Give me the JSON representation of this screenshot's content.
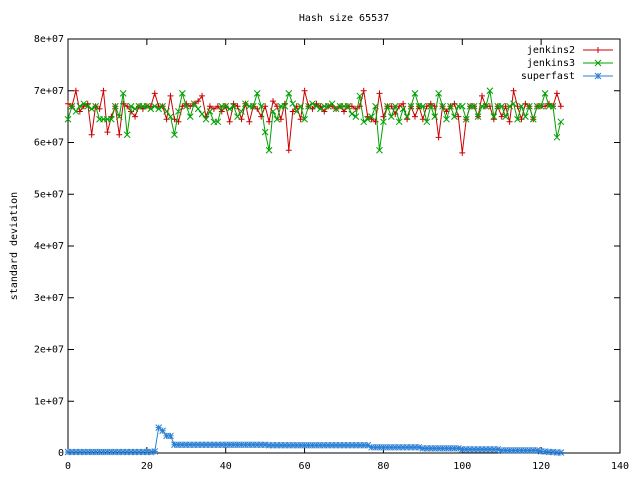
{
  "chart_data": {
    "type": "line",
    "title": "Hash size 65537",
    "ylabel": "standard deviation",
    "xlim": [
      0,
      140
    ],
    "xticks": [
      0,
      20,
      40,
      60,
      80,
      100,
      120,
      140
    ],
    "ylim": [
      0,
      80000000.0
    ],
    "yticks": [
      0,
      {
        "value": 10000000.0,
        "label": "1e+07"
      },
      {
        "value": 20000000.0,
        "label": "2e+07"
      },
      {
        "value": 30000000.0,
        "label": "3e+07"
      },
      {
        "value": 40000000.0,
        "label": "4e+07"
      },
      {
        "value": 50000000.0,
        "label": "5e+07"
      },
      {
        "value": 60000000.0,
        "label": "6e+07"
      },
      {
        "value": 70000000.0,
        "label": "7e+07"
      },
      {
        "value": 80000000.0,
        "label": "8e+07"
      }
    ],
    "legend": "top-right",
    "x": [
      0,
      1,
      2,
      3,
      4,
      5,
      6,
      7,
      8,
      9,
      10,
      11,
      12,
      13,
      14,
      15,
      16,
      17,
      18,
      19,
      20,
      21,
      22,
      23,
      24,
      25,
      26,
      27,
      28,
      29,
      30,
      31,
      32,
      33,
      34,
      35,
      36,
      37,
      38,
      39,
      40,
      41,
      42,
      43,
      44,
      45,
      46,
      47,
      48,
      49,
      50,
      51,
      52,
      53,
      54,
      55,
      56,
      57,
      58,
      59,
      60,
      61,
      62,
      63,
      64,
      65,
      66,
      67,
      68,
      69,
      70,
      71,
      72,
      73,
      74,
      75,
      76,
      77,
      78,
      79,
      80,
      81,
      82,
      83,
      84,
      85,
      86,
      87,
      88,
      89,
      90,
      91,
      92,
      93,
      94,
      95,
      96,
      97,
      98,
      99,
      100,
      101,
      102,
      103,
      104,
      105,
      106,
      107,
      108,
      109,
      110,
      111,
      112,
      113,
      114,
      115,
      116,
      117,
      118,
      119,
      120,
      121,
      122,
      123,
      124,
      125
    ],
    "series": [
      {
        "name": "jenkins2",
        "color": "#cc0000",
        "marker": "plus",
        "values": [
          67500000.0,
          67000000.0,
          70000000.0,
          66000000.0,
          67000000.0,
          67500000.0,
          61500000.0,
          67000000.0,
          66500000.0,
          70000000.0,
          62000000.0,
          65000000.0,
          67000000.0,
          61500000.0,
          67500000.0,
          67000000.0,
          66000000.0,
          65000000.0,
          67000000.0,
          66500000.0,
          67000000.0,
          67000000.0,
          69500000.0,
          67000000.0,
          67000000.0,
          64500000.0,
          69000000.0,
          64500000.0,
          64000000.0,
          67000000.0,
          67500000.0,
          67000000.0,
          67500000.0,
          68000000.0,
          69000000.0,
          65000000.0,
          67000000.0,
          66500000.0,
          67000000.0,
          66000000.0,
          67000000.0,
          64000000.0,
          67500000.0,
          67000000.0,
          64500000.0,
          67500000.0,
          64000000.0,
          67000000.0,
          66500000.0,
          65000000.0,
          67000000.0,
          64000000.0,
          68000000.0,
          67000000.0,
          64500000.0,
          67500000.0,
          58500000.0,
          66000000.0,
          67000000.0,
          64500000.0,
          70000000.0,
          67000000.0,
          66500000.0,
          67500000.0,
          67000000.0,
          66000000.0,
          67000000.0,
          67000000.0,
          66500000.0,
          67000000.0,
          66000000.0,
          67000000.0,
          67000000.0,
          66500000.0,
          67000000.0,
          70000000.0,
          65000000.0,
          64500000.0,
          64000000.0,
          69500000.0,
          65000000.0,
          67000000.0,
          67000000.0,
          65500000.0,
          67000000.0,
          67500000.0,
          64500000.0,
          67000000.0,
          65000000.0,
          67000000.0,
          64500000.0,
          67000000.0,
          67500000.0,
          67000000.0,
          61000000.0,
          67000000.0,
          66000000.0,
          67000000.0,
          67500000.0,
          65000000.0,
          58000000.0,
          64500000.0,
          67000000.0,
          67000000.0,
          65000000.0,
          69000000.0,
          67000000.0,
          67000000.0,
          64500000.0,
          67000000.0,
          65000000.0,
          67000000.0,
          64000000.0,
          70000000.0,
          67000000.0,
          64500000.0,
          67500000.0,
          67000000.0,
          64500000.0,
          67000000.0,
          67000000.0,
          67000000.0,
          67500000.0,
          67000000.0,
          69500000.0,
          67000000.0
        ]
      },
      {
        "name": "jenkins3",
        "color": "#00a000",
        "marker": "cross",
        "values": [
          64500000.0,
          67000000.0,
          66000000.0,
          67000000.0,
          67500000.0,
          67000000.0,
          66500000.0,
          67000000.0,
          64500000.0,
          64500000.0,
          64500000.0,
          64500000.0,
          67000000.0,
          65000000.0,
          69500000.0,
          61500000.0,
          67000000.0,
          66500000.0,
          67000000.0,
          67000000.0,
          67000000.0,
          66500000.0,
          67000000.0,
          66500000.0,
          67000000.0,
          66000000.0,
          65000000.0,
          61500000.0,
          66000000.0,
          69500000.0,
          67000000.0,
          65000000.0,
          67500000.0,
          66500000.0,
          65500000.0,
          64500000.0,
          66000000.0,
          64000000.0,
          64000000.0,
          67000000.0,
          67000000.0,
          66500000.0,
          67000000.0,
          65000000.0,
          66000000.0,
          67500000.0,
          67000000.0,
          67000000.0,
          69500000.0,
          67000000.0,
          62000000.0,
          58500000.0,
          66000000.0,
          64500000.0,
          67000000.0,
          67000000.0,
          69500000.0,
          67500000.0,
          66000000.0,
          67000000.0,
          64500000.0,
          67000000.0,
          67500000.0,
          67000000.0,
          66500000.0,
          67000000.0,
          67000000.0,
          67500000.0,
          66500000.0,
          67000000.0,
          67000000.0,
          67000000.0,
          65500000.0,
          65000000.0,
          69000000.0,
          64000000.0,
          64500000.0,
          65000000.0,
          67000000.0,
          58500000.0,
          64000000.0,
          67000000.0,
          65000000.0,
          67000000.0,
          64000000.0,
          66500000.0,
          65000000.0,
          67000000.0,
          69500000.0,
          67000000.0,
          67000000.0,
          64000000.0,
          67000000.0,
          65000000.0,
          69500000.0,
          67000000.0,
          64500000.0,
          67000000.0,
          65000000.0,
          67000000.0,
          67000000.0,
          64500000.0,
          67000000.0,
          67000000.0,
          65000000.0,
          67000000.0,
          67000000.0,
          70000000.0,
          65000000.0,
          67000000.0,
          67000000.0,
          65000000.0,
          67000000.0,
          67500000.0,
          64500000.0,
          67000000.0,
          65000000.0,
          67000000.0,
          64500000.0,
          67000000.0,
          67000000.0,
          69500000.0,
          67000000.0,
          67000000.0,
          61000000.0,
          64000000.0
        ]
      },
      {
        "name": "superfast",
        "color": "#2a7fd4",
        "marker": "star",
        "values": [
          200000.0,
          200000.0,
          200000.0,
          200000.0,
          200000.0,
          200000.0,
          200000.0,
          200000.0,
          200000.0,
          200000.0,
          200000.0,
          200000.0,
          200000.0,
          200000.0,
          200000.0,
          200000.0,
          200000.0,
          200000.0,
          200000.0,
          200000.0,
          200000.0,
          200000.0,
          300000.0,
          4900000.0,
          4300000.0,
          3300000.0,
          3300000.0,
          1600000.0,
          1600000.0,
          1600000.0,
          1600000.0,
          1600000.0,
          1600000.0,
          1600000.0,
          1600000.0,
          1600000.0,
          1600000.0,
          1600000.0,
          1600000.0,
          1600000.0,
          1600000.0,
          1600000.0,
          1600000.0,
          1600000.0,
          1600000.0,
          1600000.0,
          1600000.0,
          1600000.0,
          1600000.0,
          1600000.0,
          1600000.0,
          1500000.0,
          1500000.0,
          1500000.0,
          1500000.0,
          1500000.0,
          1500000.0,
          1500000.0,
          1500000.0,
          1500000.0,
          1500000.0,
          1500000.0,
          1500000.0,
          1500000.0,
          1500000.0,
          1500000.0,
          1500000.0,
          1500000.0,
          1500000.0,
          1500000.0,
          1500000.0,
          1500000.0,
          1500000.0,
          1500000.0,
          1500000.0,
          1500000.0,
          1500000.0,
          1100000.0,
          1100000.0,
          1100000.0,
          1100000.0,
          1100000.0,
          1100000.0,
          1100000.0,
          1100000.0,
          1100000.0,
          1100000.0,
          1100000.0,
          1100000.0,
          1100000.0,
          900000.0,
          900000.0,
          900000.0,
          900000.0,
          900000.0,
          900000.0,
          900000.0,
          900000.0,
          900000.0,
          900000.0,
          700000.0,
          700000.0,
          700000.0,
          700000.0,
          700000.0,
          700000.0,
          700000.0,
          700000.0,
          700000.0,
          700000.0,
          500000.0,
          500000.0,
          500000.0,
          500000.0,
          500000.0,
          500000.0,
          500000.0,
          500000.0,
          500000.0,
          500000.0,
          300000.0,
          300000.0,
          200000.0,
          200000.0,
          100000.0,
          100000.0
        ]
      }
    ]
  }
}
